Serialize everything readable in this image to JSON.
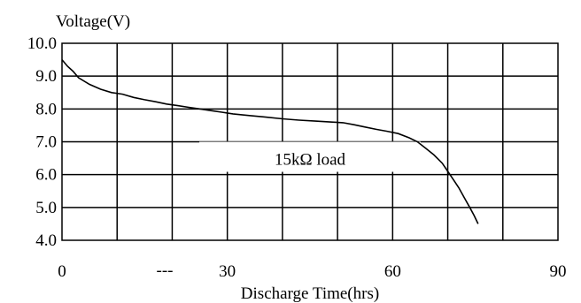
{
  "chart_data": {
    "type": "line",
    "title": "",
    "ylabel": "Voltage(V)",
    "xlabel": "Discharge Time(hrs)",
    "xlim": [
      0,
      90
    ],
    "ylim": [
      4.0,
      10.0
    ],
    "x_ticks": [
      {
        "value": 0,
        "label": "0"
      },
      {
        "value": 30,
        "label": "30"
      },
      {
        "value": 60,
        "label": "60"
      },
      {
        "value": 90,
        "label": "90"
      }
    ],
    "x_dash_label": "---",
    "y_ticks": [
      {
        "value": 4.0,
        "label": "4.0"
      },
      {
        "value": 5.0,
        "label": "5.0"
      },
      {
        "value": 6.0,
        "label": "6.0"
      },
      {
        "value": 7.0,
        "label": "7.0"
      },
      {
        "value": 8.0,
        "label": "8.0"
      },
      {
        "value": 9.0,
        "label": "9.0"
      },
      {
        "value": 10.0,
        "label": "10.0"
      }
    ],
    "grid": true,
    "grid_x_step": 10,
    "series": [
      {
        "name": "",
        "color": "#000000",
        "points": [
          [
            0,
            9.5
          ],
          [
            1,
            9.3
          ],
          [
            2,
            9.15
          ],
          [
            3,
            8.95
          ],
          [
            5,
            8.75
          ],
          [
            7,
            8.6
          ],
          [
            9,
            8.5
          ],
          [
            11,
            8.45
          ],
          [
            13,
            8.35
          ],
          [
            15,
            8.28
          ],
          [
            17,
            8.22
          ],
          [
            19,
            8.15
          ],
          [
            21,
            8.1
          ],
          [
            23,
            8.05
          ],
          [
            25,
            8.0
          ],
          [
            27,
            7.95
          ],
          [
            29,
            7.9
          ],
          [
            31,
            7.85
          ],
          [
            34,
            7.8
          ],
          [
            37,
            7.75
          ],
          [
            40,
            7.7
          ],
          [
            43,
            7.66
          ],
          [
            46,
            7.63
          ],
          [
            49,
            7.6
          ],
          [
            51,
            7.58
          ],
          [
            53,
            7.52
          ],
          [
            55,
            7.45
          ],
          [
            57,
            7.38
          ],
          [
            59,
            7.32
          ],
          [
            61,
            7.25
          ],
          [
            63,
            7.12
          ],
          [
            64.5,
            7.0
          ],
          [
            66,
            6.8
          ],
          [
            67.5,
            6.6
          ],
          [
            69,
            6.35
          ],
          [
            70,
            6.1
          ],
          [
            71,
            5.85
          ],
          [
            72,
            5.6
          ],
          [
            73,
            5.3
          ],
          [
            74,
            5.0
          ],
          [
            74.8,
            4.75
          ],
          [
            75.5,
            4.5
          ]
        ]
      }
    ],
    "annotation": {
      "text": "15kΩ load",
      "x": 45,
      "y": 6.3
    }
  }
}
